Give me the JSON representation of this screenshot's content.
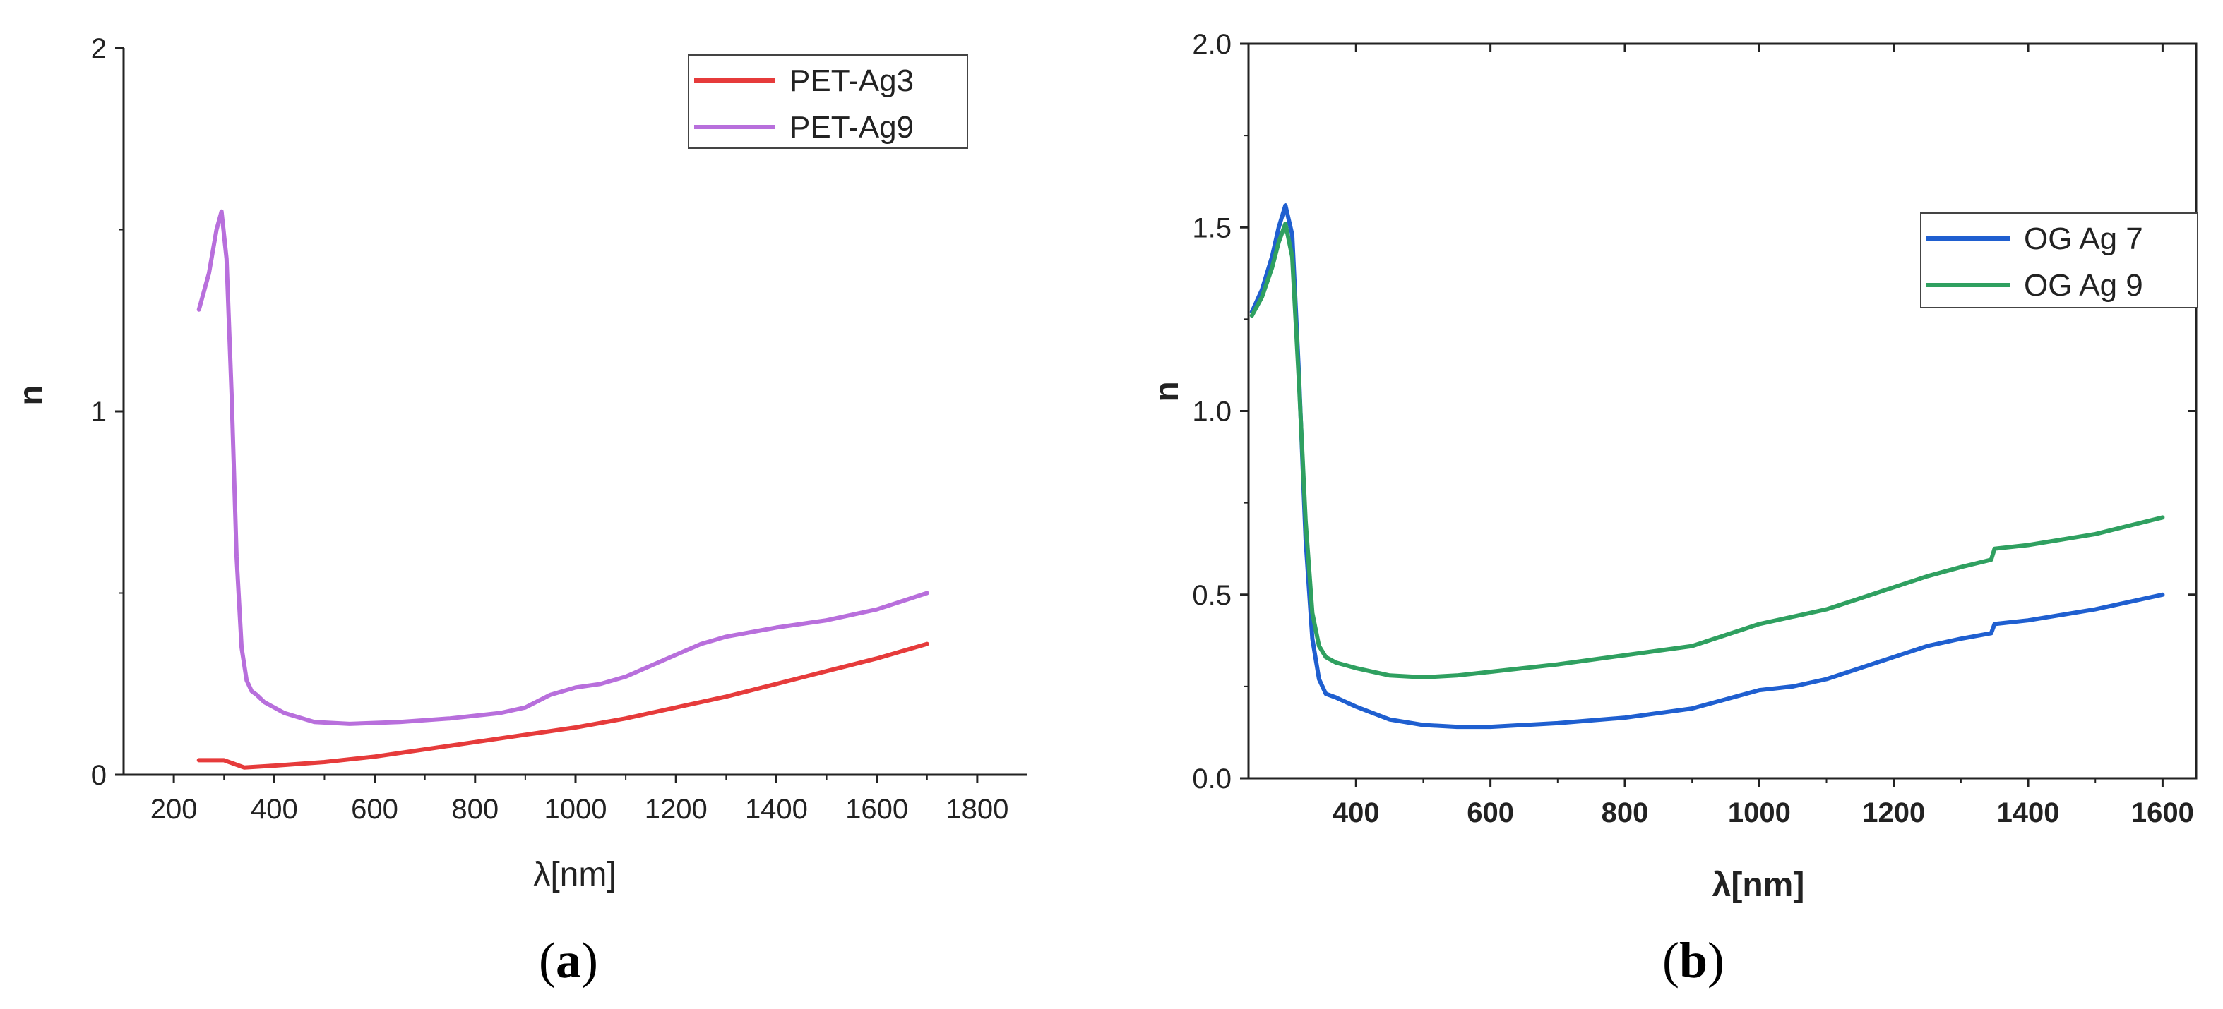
{
  "chart_data": [
    {
      "panel_label": "a",
      "type": "line",
      "xlabel": "λ[nm]",
      "ylabel": "n",
      "xlim": [
        100,
        1900
      ],
      "ylim": [
        0,
        2
      ],
      "xticks": [
        200,
        400,
        600,
        800,
        1000,
        1200,
        1400,
        1600,
        1800
      ],
      "yticks": [
        0,
        1,
        2
      ],
      "grid": false,
      "legend_position": "top-right",
      "series": [
        {
          "name": "PET-Ag3",
          "color": "#e63b3b",
          "x": [
            250,
            280,
            300,
            320,
            340,
            400,
            500,
            600,
            700,
            800,
            900,
            1000,
            1100,
            1200,
            1300,
            1400,
            1500,
            1600,
            1700
          ],
          "y": [
            0.04,
            0.04,
            0.04,
            0.03,
            0.02,
            0.025,
            0.035,
            0.05,
            0.07,
            0.09,
            0.11,
            0.13,
            0.155,
            0.185,
            0.215,
            0.25,
            0.285,
            0.32,
            0.36
          ]
        },
        {
          "name": "PET-Ag9",
          "color": "#b86fdc",
          "x": [
            250,
            270,
            285,
            295,
            305,
            315,
            325,
            335,
            345,
            355,
            365,
            380,
            420,
            480,
            550,
            650,
            750,
            850,
            900,
            950,
            1000,
            1050,
            1100,
            1150,
            1200,
            1250,
            1300,
            1400,
            1500,
            1600,
            1700
          ],
          "y": [
            1.28,
            1.38,
            1.5,
            1.55,
            1.42,
            1.05,
            0.6,
            0.35,
            0.26,
            0.23,
            0.22,
            0.2,
            0.17,
            0.145,
            0.14,
            0.145,
            0.155,
            0.17,
            0.185,
            0.22,
            0.24,
            0.25,
            0.27,
            0.3,
            0.33,
            0.36,
            0.38,
            0.405,
            0.425,
            0.455,
            0.5
          ]
        }
      ]
    },
    {
      "panel_label": "b",
      "type": "line",
      "xlabel": "λ[nm]",
      "ylabel": "n",
      "xlim": [
        240,
        1650
      ],
      "ylim": [
        0,
        2.0
      ],
      "xticks": [
        400,
        600,
        800,
        1000,
        1200,
        1400,
        1600
      ],
      "yticks": [
        0.0,
        0.5,
        1.0,
        1.5,
        2.0
      ],
      "ytick_labels": [
        "0.0",
        "0.5",
        "1.0",
        "1.5",
        "2.0"
      ],
      "grid": false,
      "legend_position": "right",
      "series": [
        {
          "name": "OG Ag 7",
          "color": "#1f5fd0",
          "x": [
            245,
            260,
            275,
            285,
            295,
            305,
            315,
            325,
            335,
            345,
            355,
            370,
            400,
            450,
            500,
            550,
            600,
            700,
            800,
            900,
            950,
            1000,
            1050,
            1100,
            1150,
            1200,
            1250,
            1300,
            1345,
            1350,
            1400,
            1500,
            1600
          ],
          "y": [
            1.27,
            1.33,
            1.42,
            1.5,
            1.56,
            1.48,
            1.1,
            0.65,
            0.38,
            0.27,
            0.23,
            0.22,
            0.195,
            0.16,
            0.145,
            0.14,
            0.14,
            0.15,
            0.165,
            0.19,
            0.215,
            0.24,
            0.25,
            0.27,
            0.3,
            0.33,
            0.36,
            0.38,
            0.395,
            0.42,
            0.43,
            0.46,
            0.5
          ]
        },
        {
          "name": "OG Ag 9",
          "color": "#2fa060",
          "x": [
            245,
            260,
            275,
            285,
            295,
            305,
            315,
            325,
            335,
            345,
            355,
            370,
            400,
            450,
            500,
            550,
            600,
            700,
            800,
            900,
            950,
            1000,
            1050,
            1100,
            1150,
            1200,
            1250,
            1300,
            1345,
            1350,
            1400,
            1500,
            1600
          ],
          "y": [
            1.26,
            1.31,
            1.39,
            1.46,
            1.51,
            1.42,
            1.08,
            0.7,
            0.45,
            0.36,
            0.33,
            0.315,
            0.3,
            0.28,
            0.275,
            0.28,
            0.29,
            0.31,
            0.335,
            0.36,
            0.39,
            0.42,
            0.44,
            0.46,
            0.49,
            0.52,
            0.55,
            0.575,
            0.595,
            0.625,
            0.635,
            0.665,
            0.71
          ]
        }
      ]
    }
  ]
}
